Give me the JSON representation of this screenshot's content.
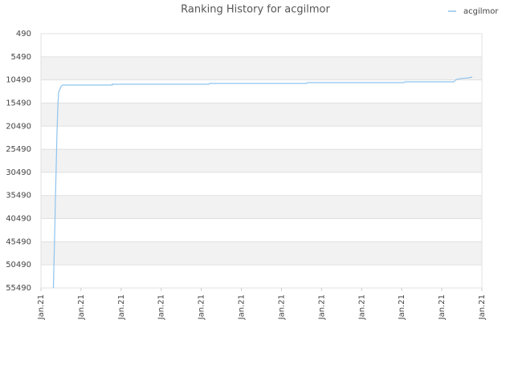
{
  "chart_data": {
    "type": "line",
    "title": "Ranking History for acgilmor",
    "xlim": [
      0,
      11
    ],
    "xticks": [
      {
        "value": 0,
        "label": "Jan.21"
      },
      {
        "value": 1,
        "label": "Jan.21"
      },
      {
        "value": 2,
        "label": "Jan.21"
      },
      {
        "value": 3,
        "label": "Jan.21"
      },
      {
        "value": 4,
        "label": "Jan.21"
      },
      {
        "value": 5,
        "label": "Jan.21"
      },
      {
        "value": 6,
        "label": "Jan.21"
      },
      {
        "value": 7,
        "label": "Jan.21"
      },
      {
        "value": 8,
        "label": "Jan.21"
      },
      {
        "value": 9,
        "label": "Jan.21"
      },
      {
        "value": 10,
        "label": "Jan.21"
      },
      {
        "value": 11,
        "label": "Jan.21"
      }
    ],
    "ylim": [
      55490,
      490
    ],
    "yticks": [
      490,
      5490,
      10490,
      15490,
      20490,
      25490,
      30490,
      35490,
      40490,
      45490,
      50490,
      55490
    ],
    "grid": true,
    "legend": "top-right",
    "series": [
      {
        "name": "acgilmor",
        "color": "#8ec3ee",
        "x": [
          0.31,
          0.32,
          0.34,
          0.36,
          0.38,
          0.4,
          0.42,
          0.44,
          0.5,
          0.54,
          1.78,
          1.78,
          4.19,
          4.21,
          6.63,
          6.65,
          9.06,
          9.08,
          10.3,
          10.36,
          10.48,
          10.68,
          10.76
        ],
        "values": [
          55490,
          51840,
          44560,
          36580,
          29290,
          21830,
          16630,
          13160,
          11940,
          11590,
          11590,
          11420,
          11420,
          11250,
          11250,
          11070,
          11070,
          10900,
          10900,
          10380,
          10200,
          10030,
          9860
        ]
      }
    ]
  }
}
